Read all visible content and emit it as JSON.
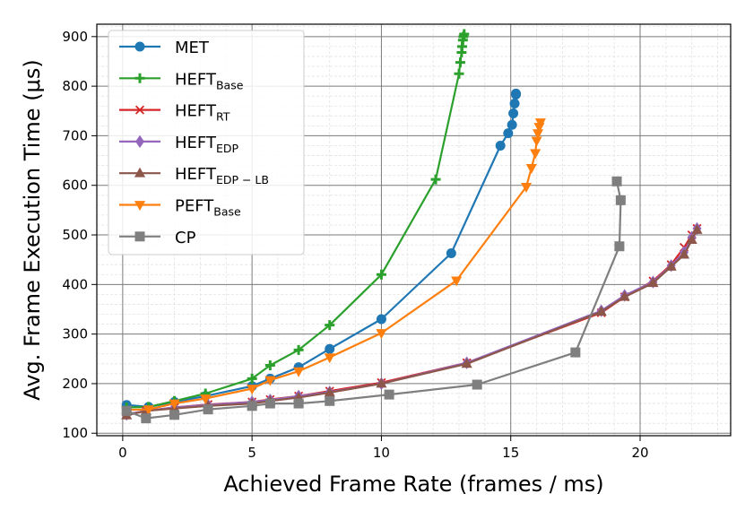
{
  "chart_data": {
    "type": "line",
    "xlabel": "Achieved Frame Rate (frames / ms)",
    "ylabel": "Avg. Frame Execution Time (μs)",
    "xlim": [
      -1,
      23.5
    ],
    "ylim": [
      95,
      925
    ],
    "xticks": [
      0,
      5,
      10,
      15,
      20
    ],
    "yticks": [
      100,
      200,
      300,
      400,
      500,
      600,
      700,
      800,
      900
    ],
    "grid": true,
    "legend_position": "top-left",
    "series": [
      {
        "name": "MET",
        "sub": "",
        "color": "#1f77b4",
        "marker": "circle",
        "x": [
          0.15,
          1.0,
          2.0,
          3.2,
          5.0,
          5.7,
          6.8,
          8.0,
          10.0,
          12.7,
          14.6,
          14.9,
          15.05,
          15.1,
          15.15,
          15.2,
          15.2
        ],
        "y": [
          157,
          153,
          163,
          175,
          195,
          210,
          233,
          270,
          330,
          463,
          680,
          705,
          722,
          745,
          765,
          783,
          785
        ]
      },
      {
        "name": "HEFT",
        "sub": "Base",
        "color": "#2ca02c",
        "marker": "plus",
        "x": [
          0.15,
          1.0,
          2.0,
          3.2,
          5.0,
          5.7,
          6.8,
          8.0,
          10.0,
          12.1,
          13.0,
          13.05,
          13.1,
          13.12,
          13.15,
          13.17,
          13.2
        ],
        "y": [
          152,
          153,
          165,
          180,
          210,
          237,
          268,
          318,
          420,
          612,
          825,
          848,
          868,
          880,
          893,
          900,
          905
        ]
      },
      {
        "name": "HEFT",
        "sub": "RT",
        "color": "#d62728",
        "marker": "x",
        "x": [
          0.15,
          0.9,
          2.0,
          3.3,
          5.0,
          5.7,
          6.8,
          8.0,
          10.0,
          13.3,
          18.5,
          19.4,
          20.5,
          21.2,
          21.7,
          22.0,
          22.2
        ],
        "y": [
          138,
          145,
          152,
          158,
          163,
          168,
          175,
          185,
          202,
          242,
          343,
          375,
          407,
          440,
          475,
          500,
          513
        ]
      },
      {
        "name": "HEFT",
        "sub": "EDP",
        "color": "#9467bd",
        "marker": "diamond",
        "x": [
          0.15,
          0.9,
          2.0,
          3.3,
          5.0,
          5.7,
          6.8,
          8.0,
          10.0,
          13.3,
          18.5,
          19.4,
          20.5,
          21.2,
          21.7,
          22.0,
          22.2
        ],
        "y": [
          138,
          145,
          152,
          157,
          163,
          167,
          175,
          183,
          200,
          242,
          347,
          378,
          405,
          438,
          465,
          495,
          513
        ]
      },
      {
        "name": "HEFT",
        "sub": "EDP − LB",
        "color": "#8c564b",
        "marker": "triangle-up",
        "x": [
          0.15,
          0.9,
          2.0,
          3.3,
          5.0,
          5.7,
          6.8,
          8.0,
          10.0,
          13.3,
          18.5,
          19.4,
          20.5,
          21.2,
          21.7,
          22.0,
          22.2
        ],
        "y": [
          136,
          145,
          150,
          155,
          160,
          165,
          172,
          182,
          200,
          240,
          345,
          375,
          403,
          436,
          460,
          490,
          510
        ]
      },
      {
        "name": "PEFT",
        "sub": "Base",
        "color": "#ff7f0e",
        "marker": "triangle-down",
        "x": [
          0.15,
          1.0,
          2.0,
          3.2,
          5.0,
          5.7,
          6.8,
          8.0,
          10.0,
          12.9,
          15.6,
          15.8,
          15.95,
          16.0,
          16.05,
          16.1,
          16.15
        ],
        "y": [
          147,
          148,
          160,
          170,
          190,
          207,
          225,
          253,
          302,
          408,
          597,
          635,
          665,
          690,
          705,
          718,
          727
        ]
      },
      {
        "name": "CP",
        "sub": "",
        "color": "#7f7f7f",
        "marker": "square",
        "x": [
          0.15,
          0.9,
          2.0,
          3.3,
          5.0,
          5.7,
          6.8,
          8.0,
          10.3,
          13.7,
          17.5,
          19.2,
          19.25,
          19.1
        ],
        "y": [
          145,
          130,
          137,
          148,
          155,
          160,
          160,
          165,
          178,
          198,
          263,
          477,
          570,
          608
        ]
      }
    ]
  }
}
